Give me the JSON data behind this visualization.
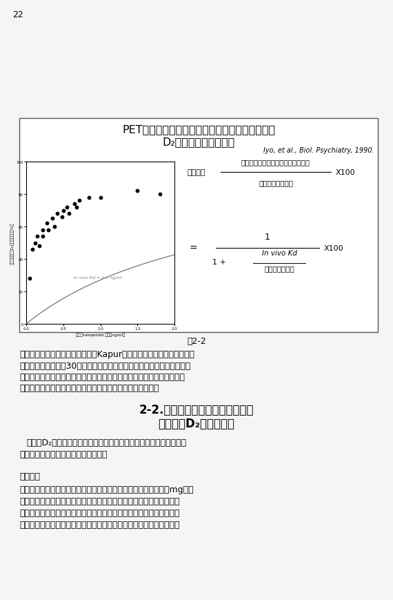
{
  "page_number": "22",
  "background_color": "#f5f5f5",
  "box_bg": "#ffffff",
  "box_title_line1": "PETにより測定したハロペリドール血漿中濃度と",
  "box_title_line2": "D₂受容体占拠率の相関",
  "citation": "Iyo, et al., Biol. Psychiatry, 1990.",
  "graph_ylabel": "ハロペリドールD₂受容体占拠率（%）",
  "graph_xlabel": "血漿中haloperidol 濃度（ng/ml）",
  "graph_annotation": "in vivo Kd = 2.7 ng/ml",
  "scatter_x": [
    0.05,
    0.08,
    0.12,
    0.15,
    0.18,
    0.22,
    0.22,
    0.28,
    0.3,
    0.35,
    0.38,
    0.42,
    0.48,
    0.5,
    0.55,
    0.58,
    0.65,
    0.68,
    0.72,
    0.85,
    1.0,
    1.5,
    1.8
  ],
  "scatter_y": [
    28,
    46,
    50,
    54,
    48,
    58,
    54,
    62,
    58,
    65,
    60,
    68,
    66,
    70,
    72,
    68,
    74,
    72,
    76,
    78,
    78,
    82,
    80
  ],
  "kd": 2.7,
  "formula_occ": "占拠率＝",
  "formula_numerator": "非服薬時の結合能－内服時の結合能",
  "formula_denominator": "非服薬時の結合能",
  "formula_x100": "X100",
  "formula2_numerator": "1",
  "formula2_denom_part1": "1 +",
  "formula2_invivo": "In vivo Kd",
  "formula2_plasma": "血潏中薬物濃度",
  "formula2_x100": "X100",
  "fig_caption": "図2-2",
  "para1": "鑄体外路症状が出てしまいます。Kapurたちが至適占拠率を調べた対象",
  "para2": "患者たちというのは30代の初発の患者さんたちです。したがって、至適",
  "para3": "占拠率は初発か再発か、若年者か高齢者かで異なり、大量投与が必要と",
  "para4": "なってしまっている人たちでも異なる可能性があるのです。",
  "section_title_line1": "2-2.　ドパミン過感受性精神病と",
  "section_title_line2": "ドパミンD₂受容体密度",
  "body1_line1": "ここでD₂受容体の密度と精神症状の関係について考えるために症例",
  "body1_line2": "についてお話しさせていただきます。",
  "case_label": "【症例】",
  "case_line1": "　㌸歳の男性で、㉢　歳のときに発症して、ハロペリドール６　mgで２",
  "case_line2": "カ月程度で宽解して、専門学校を中退してしまいましたがアルバイト",
  "case_line3": "を開始しました。症候学的には宽解に至り、社会機能も回復したわけ",
  "case_line4": "です。ただ鑄体外路症状のために抗コリン薬を併用していました。こ"
}
